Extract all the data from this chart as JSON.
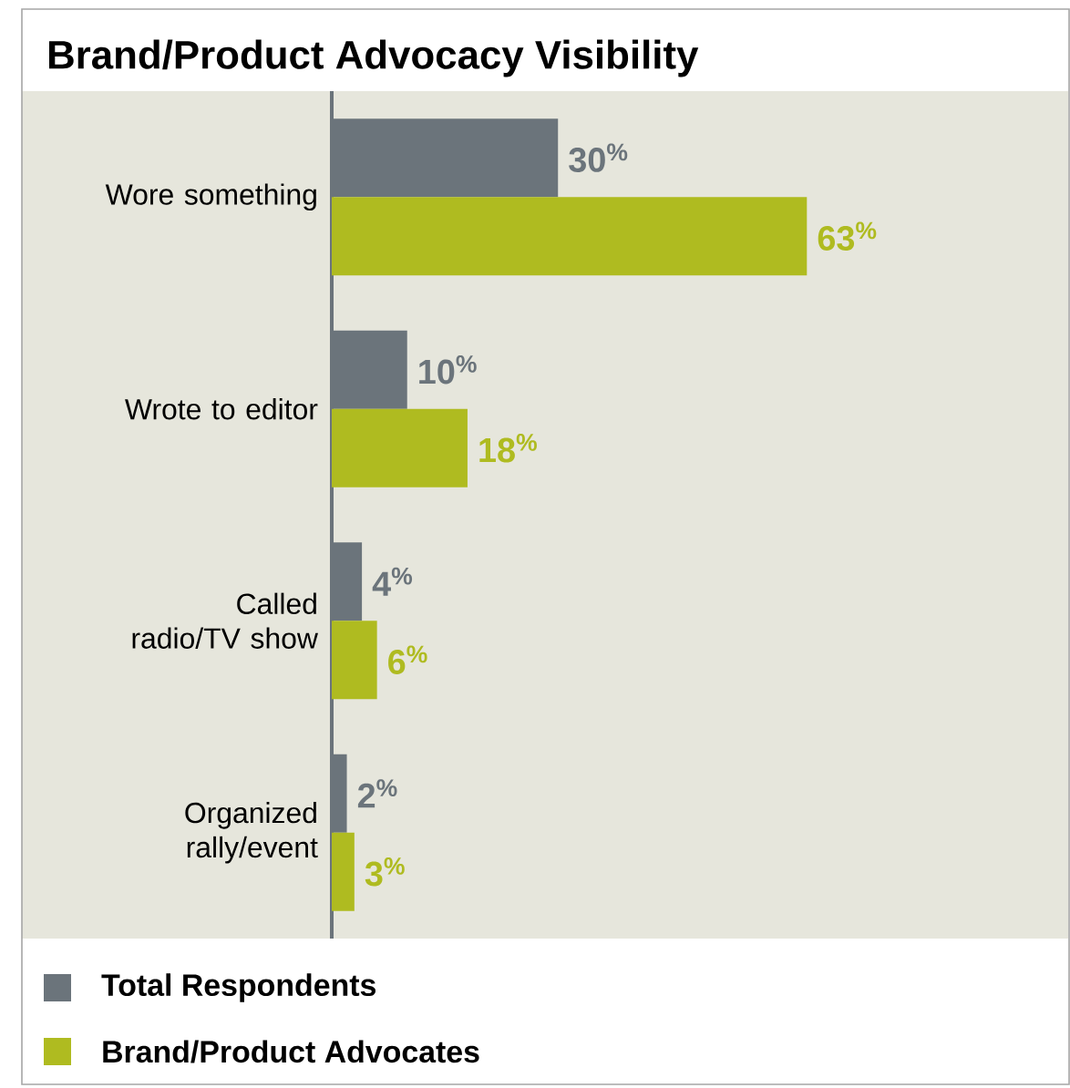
{
  "chart_data": {
    "type": "bar",
    "orientation": "horizontal",
    "title": "Brand/Product Advocacy Visibility",
    "categories": [
      "Wore something",
      "Wrote to editor",
      "Called radio/TV show",
      "Organized rally/event"
    ],
    "series": [
      {
        "name": "Total Respondents",
        "color": "#6b747b",
        "values": [
          30,
          10,
          4,
          2
        ],
        "value_labels": [
          "30$^{%}$",
          "10$^{%}$",
          "4$^{%}$",
          "2$^{%}$"
        ]
      },
      {
        "name": "Brand/Product Advocates",
        "color": "#afbb20",
        "values": [
          63,
          18,
          6,
          3
        ],
        "value_labels": [
          "63$^{%}$",
          "18$^{%}$",
          "6$^{%}$",
          "3$^{%}$"
        ]
      }
    ],
    "legend": "bottom"
  }
}
